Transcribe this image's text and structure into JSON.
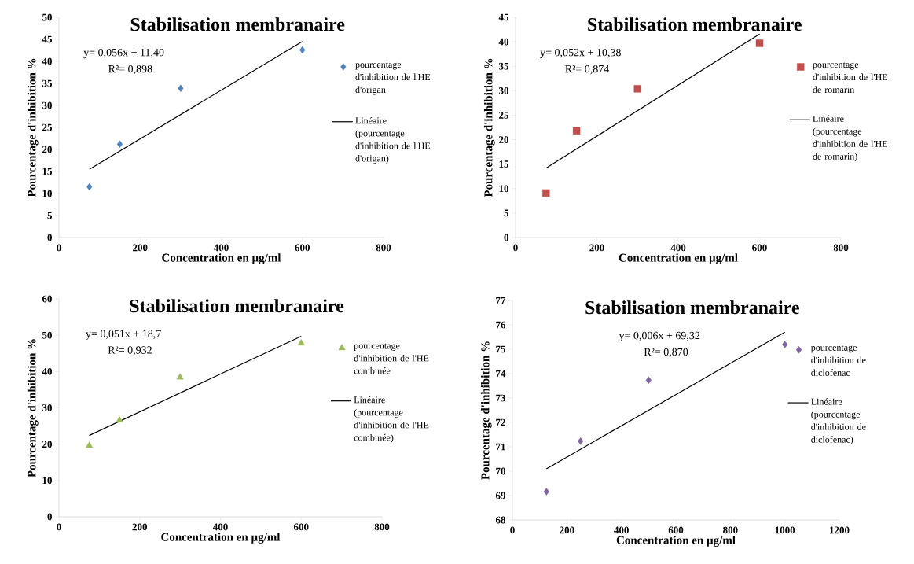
{
  "chart_data": [
    {
      "type": "scatter",
      "title": "Stabilisation membranaire",
      "xlabel": "Concentration en µg/ml",
      "ylabel": "Pourcentage d'inhibition  %",
      "xlim": [
        0,
        800
      ],
      "xticks": [
        0,
        200,
        400,
        600,
        800
      ],
      "ylim": [
        0,
        50
      ],
      "yticks": [
        0,
        5,
        10,
        15,
        20,
        25,
        30,
        35,
        40,
        45,
        50
      ],
      "legend": "right",
      "annotations": [
        "y= 0,056x + 11,40",
        "R²= 0,898"
      ],
      "series": [
        {
          "name": "pourcentage d'inhibition de l'HE d'origan",
          "marker": "diamond",
          "color": "#4f81bd",
          "x": [
            75,
            150,
            300,
            600
          ],
          "values": [
            11.5,
            21.2,
            33.9,
            42.6
          ]
        },
        {
          "name": "Linéaire (pourcentage d'inhibition de l'HE d'origan)",
          "type": "line",
          "marker": "none",
          "color": "#000000",
          "x": [
            75,
            600
          ],
          "values": [
            15.5,
            44.5
          ]
        }
      ]
    },
    {
      "type": "scatter",
      "title": "Stabilisation membranaire",
      "xlabel": "Concentration en µg/ml",
      "ylabel": "Pourcentage d'inhibition  %",
      "xlim": [
        0,
        800
      ],
      "xticks": [
        0,
        200,
        400,
        600,
        800
      ],
      "ylim": [
        0,
        45
      ],
      "yticks": [
        0,
        5,
        10,
        15,
        20,
        25,
        30,
        35,
        40,
        45
      ],
      "legend": "right",
      "annotations": [
        "y= 0,052x + 10,38",
        "R²= 0,874"
      ],
      "series": [
        {
          "name": "pourcentage d'inhibition de l'HE de romarin",
          "marker": "square",
          "color": "#c0504d",
          "x": [
            75,
            150,
            300,
            600
          ],
          "values": [
            9.1,
            21.8,
            30.4,
            39.7
          ]
        },
        {
          "name": "Linéaire (pourcentage d'inhibition de l'HE de romarin)",
          "type": "line",
          "marker": "none",
          "color": "#000000",
          "x": [
            75,
            600
          ],
          "values": [
            14.2,
            41.6
          ]
        }
      ]
    },
    {
      "type": "scatter",
      "title": "Stabilisation membranaire",
      "xlabel": "Concentration en µg/ml",
      "ylabel": "Pourcentage d'inhibition  %",
      "xlim": [
        0,
        800
      ],
      "xticks": [
        0,
        200,
        400,
        600,
        800
      ],
      "ylim": [
        0,
        60
      ],
      "yticks": [
        0,
        10,
        20,
        30,
        40,
        50,
        60
      ],
      "legend": "right",
      "annotations": [
        "y= 0,051x + 18,7",
        "R²= 0,932"
      ],
      "series": [
        {
          "name": "pourcentage d'inhibition de l'HE combinée",
          "marker": "triangle",
          "color": "#9bbb59",
          "x": [
            75,
            150,
            300,
            600
          ],
          "values": [
            19.6,
            26.6,
            38.4,
            47.8
          ]
        },
        {
          "name": "Linéaire (pourcentage d'inhibition de l'HE combinée)",
          "type": "line",
          "marker": "none",
          "color": "#000000",
          "x": [
            75,
            600
          ],
          "values": [
            22.4,
            49.7
          ]
        }
      ]
    },
    {
      "type": "scatter",
      "title": "Stabilisation membranaire",
      "xlabel": "Concentration en µg/ml",
      "ylabel": "Pourcentage d'inhibition  %",
      "xlim": [
        0,
        1200
      ],
      "xticks": [
        0,
        200,
        400,
        600,
        800,
        1000,
        1200
      ],
      "ylim": [
        68,
        77
      ],
      "yticks": [
        68,
        69,
        70,
        71,
        72,
        73,
        74,
        75,
        76,
        77
      ],
      "legend": "right",
      "annotations": [
        "y= 0,006x + 69,32",
        "R²= 0,870"
      ],
      "series": [
        {
          "name": "pourcentage d'inhibition de diclofenac",
          "marker": "diamond",
          "color": "#8064a2",
          "x": [
            125,
            250,
            500,
            1000
          ],
          "values": [
            69.16,
            71.23,
            73.73,
            75.19
          ]
        },
        {
          "name": "Linéaire (pourcentage d'inhibition de diclofenac)",
          "type": "line",
          "marker": "none",
          "color": "#000000",
          "x": [
            125,
            1000
          ],
          "values": [
            70.1,
            75.7
          ]
        }
      ]
    }
  ]
}
